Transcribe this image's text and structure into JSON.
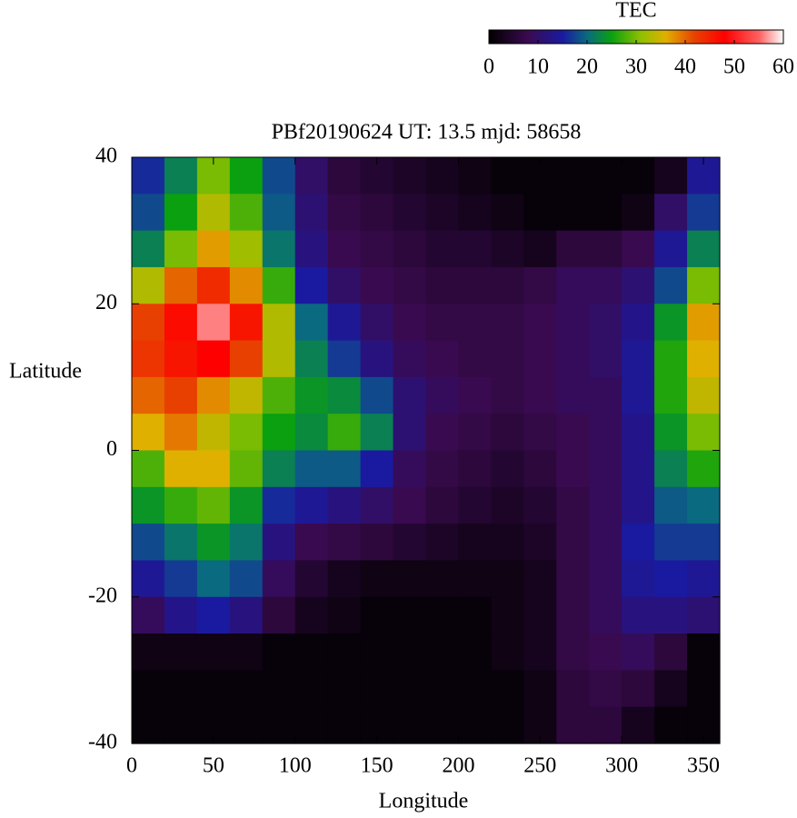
{
  "chart_data": {
    "type": "heatmap",
    "title": "PBf20190624  UT: 13.5  mjd: 58658",
    "x_label": "Longitude",
    "y_label": "Latitude",
    "x": [
      10,
      30,
      50,
      70,
      90,
      110,
      130,
      150,
      170,
      190,
      210,
      230,
      250,
      270,
      290,
      310,
      330,
      350
    ],
    "y": [
      37.5,
      32.5,
      27.5,
      22.5,
      17.5,
      12.5,
      7.5,
      2.5,
      -2.5,
      -7.5,
      -12.5,
      -17.5,
      -22.5,
      -27.5,
      -32.5,
      -37.5
    ],
    "values": [
      [
        16,
        22,
        30,
        25,
        18,
        10,
        6,
        5,
        4,
        3,
        2,
        1,
        1,
        1,
        1,
        1,
        3,
        14
      ],
      [
        18,
        25,
        33,
        28,
        19,
        11,
        7,
        6,
        5,
        4,
        3,
        2,
        1,
        1,
        1,
        2,
        10,
        17
      ],
      [
        22,
        30,
        37,
        32,
        21,
        12,
        8,
        7,
        6,
        5,
        5,
        4,
        3,
        6,
        6,
        8,
        14,
        22
      ],
      [
        33,
        40,
        44,
        38,
        27,
        15,
        10,
        8,
        7,
        6,
        6,
        6,
        7,
        9,
        9,
        11,
        18,
        30
      ],
      [
        42,
        47,
        56,
        46,
        33,
        20,
        14,
        10,
        8,
        7,
        7,
        7,
        8,
        9,
        10,
        13,
        24,
        37
      ],
      [
        43,
        46,
        48,
        42,
        33,
        22,
        17,
        12,
        9,
        8,
        7,
        7,
        8,
        9,
        10,
        14,
        26,
        36
      ],
      [
        40,
        42,
        38,
        34,
        28,
        24,
        23,
        18,
        11,
        9,
        8,
        7,
        8,
        9,
        9,
        14,
        26,
        34
      ],
      [
        36,
        39,
        34,
        30,
        25,
        23,
        27,
        22,
        11,
        8,
        7,
        6,
        7,
        8,
        9,
        13,
        24,
        30
      ],
      [
        28,
        36,
        36,
        29,
        22,
        19,
        19,
        15,
        9,
        7,
        6,
        5,
        6,
        8,
        9,
        13,
        22,
        26
      ],
      [
        24,
        27,
        29,
        24,
        16,
        14,
        12,
        10,
        8,
        6,
        5,
        4,
        5,
        7,
        9,
        13,
        19,
        20
      ],
      [
        18,
        21,
        24,
        21,
        12,
        8,
        7,
        6,
        5,
        4,
        3,
        3,
        4,
        7,
        9,
        15,
        17,
        17
      ],
      [
        14,
        17,
        20,
        18,
        9,
        5,
        3,
        2,
        2,
        2,
        2,
        2,
        3,
        7,
        9,
        14,
        15,
        14
      ],
      [
        9,
        13,
        15,
        12,
        6,
        3,
        2,
        1,
        1,
        1,
        1,
        2,
        3,
        7,
        9,
        12,
        12,
        11
      ],
      [
        2,
        2,
        2,
        2,
        1,
        1,
        1,
        1,
        1,
        1,
        1,
        2,
        3,
        7,
        8,
        9,
        6,
        1
      ],
      [
        1,
        1,
        1,
        1,
        1,
        1,
        1,
        1,
        1,
        1,
        1,
        1,
        2,
        6,
        7,
        6,
        3,
        1
      ],
      [
        1,
        1,
        1,
        1,
        1,
        1,
        1,
        1,
        1,
        1,
        1,
        1,
        2,
        6,
        6,
        3,
        1,
        1
      ]
    ],
    "xlim": [
      0,
      360
    ],
    "xticks": [
      0,
      50,
      100,
      150,
      200,
      250,
      300,
      350
    ],
    "ylim": [
      -40,
      40
    ],
    "yticks": [
      -40,
      -20,
      0,
      20,
      40
    ],
    "colorbar": {
      "label": "TEC",
      "lim": [
        0,
        60
      ],
      "ticks": [
        0,
        10,
        20,
        30,
        40,
        50,
        60
      ]
    },
    "colormap": [
      [
        0,
        "#000000"
      ],
      [
        8,
        "#3a0a50"
      ],
      [
        15,
        "#1a1aa0"
      ],
      [
        20,
        "#0a6a80"
      ],
      [
        25,
        "#0aa010"
      ],
      [
        31,
        "#90c000"
      ],
      [
        36,
        "#e0b000"
      ],
      [
        42,
        "#e84000"
      ],
      [
        48,
        "#ff0000"
      ],
      [
        55,
        "#ff6060"
      ],
      [
        60,
        "#ffffff"
      ]
    ]
  }
}
